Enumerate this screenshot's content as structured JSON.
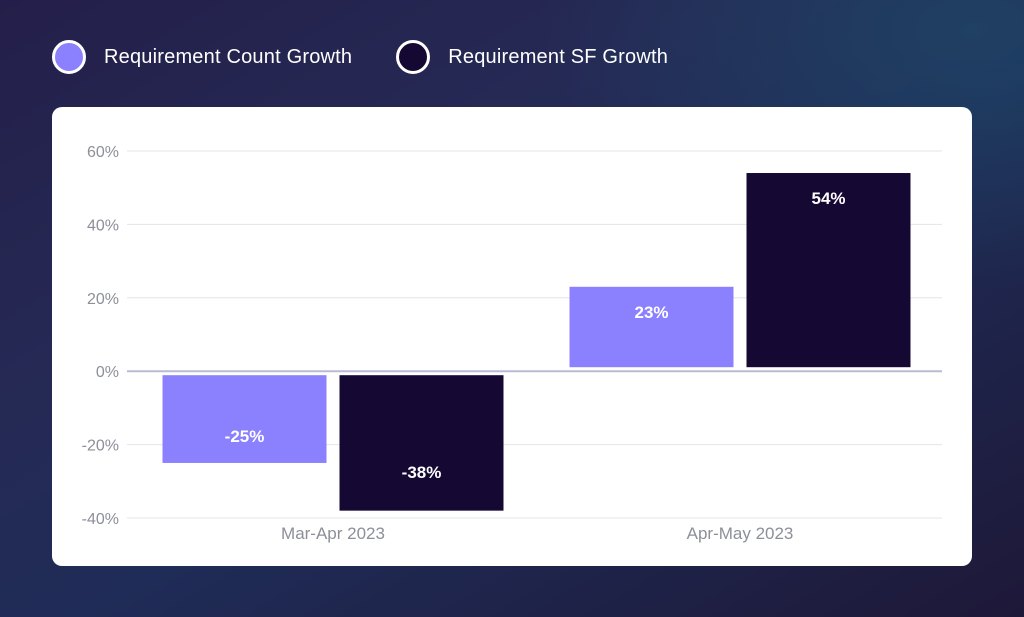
{
  "legend": [
    {
      "label": "Requirement Count Growth",
      "color": "#8b80fd"
    },
    {
      "label": "Requirement SF Growth",
      "color": "#150833"
    }
  ],
  "chart_data": {
    "type": "bar",
    "categories": [
      "Mar-Apr 2023",
      "Apr-May 2023"
    ],
    "series": [
      {
        "name": "Requirement Count Growth",
        "values": [
          -25,
          23
        ],
        "labels": [
          "-25%",
          "23%"
        ],
        "color": "#8b80fd"
      },
      {
        "name": "Requirement SF Growth",
        "values": [
          -38,
          54
        ],
        "labels": [
          "-38%",
          "54%"
        ],
        "color": "#150833"
      }
    ],
    "ylim": [
      -40,
      60
    ],
    "yticks": [
      60,
      40,
      20,
      0,
      -20,
      -40
    ],
    "ytick_labels": [
      "60%",
      "40%",
      "20%",
      "0%",
      "-20%",
      "-40%"
    ],
    "title": "",
    "xlabel": "",
    "ylabel": "",
    "grid": true
  }
}
